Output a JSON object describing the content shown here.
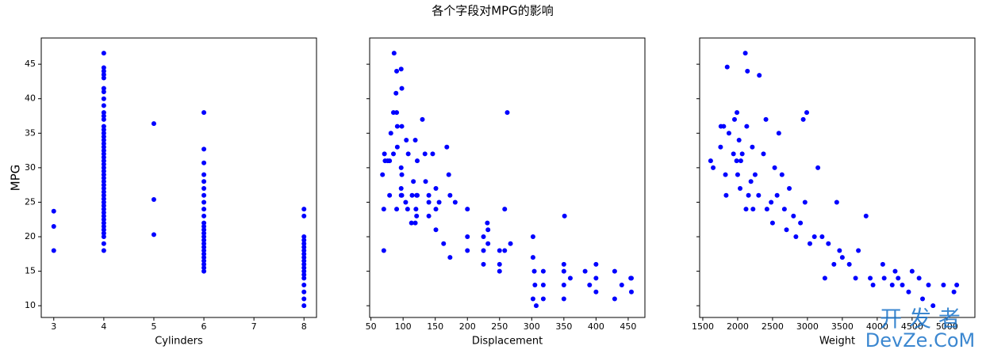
{
  "figure_title": "各个字段对MPG的影响",
  "watermark": [
    "开 发 者",
    "DevZe.CoM"
  ],
  "chart_data": [
    {
      "type": "scatter",
      "xlabel": "Cylinders",
      "ylabel": "MPG",
      "color": "#0000ff",
      "xlim": [
        2.75,
        8.25
      ],
      "xticks": [
        3,
        4,
        5,
        6,
        7,
        8
      ],
      "ylim": [
        8.3,
        48.8
      ],
      "yticks": [
        10,
        15,
        20,
        25,
        30,
        35,
        40,
        45
      ],
      "show_ytick_labels": true,
      "x": [
        3,
        3,
        3,
        4,
        4,
        4,
        4,
        4,
        4,
        4,
        4,
        4,
        4,
        4,
        4,
        4,
        4,
        4,
        4,
        4,
        4,
        4,
        4,
        4,
        4,
        4,
        4,
        4,
        4,
        4,
        4,
        4,
        4,
        4,
        4,
        4,
        4,
        4,
        4,
        4,
        4,
        4,
        4,
        4,
        4,
        4,
        4,
        4,
        4,
        4,
        5,
        5,
        5,
        6,
        6,
        6,
        6,
        6,
        6,
        6,
        6,
        6,
        6,
        6,
        6,
        6,
        6,
        6,
        6,
        6,
        6,
        6,
        6,
        6,
        6,
        6,
        6,
        6,
        8,
        8,
        8,
        8,
        8,
        8,
        8,
        8,
        8,
        8,
        8,
        8,
        8,
        8,
        8,
        8,
        8,
        8,
        8
      ],
      "y": [
        18,
        21.5,
        23.7,
        18,
        19,
        20,
        20.5,
        21,
        21.5,
        22,
        22.5,
        23,
        23.5,
        24,
        24.5,
        25,
        25.5,
        26,
        26.5,
        27,
        27.5,
        28,
        28.5,
        29,
        29.5,
        30,
        30.5,
        31,
        31.5,
        32,
        32.5,
        33,
        33.5,
        34,
        34.5,
        35,
        35.5,
        36,
        37,
        37.5,
        38,
        39,
        40,
        41,
        41.5,
        43,
        43.5,
        44,
        44.5,
        46.6,
        20.3,
        25.4,
        36.4,
        15,
        15.5,
        16,
        16.5,
        17,
        17.5,
        18,
        18.5,
        19,
        19.5,
        20,
        20.5,
        21,
        21.5,
        22,
        23,
        24,
        25,
        26,
        27,
        28,
        29,
        30.7,
        32.7,
        38,
        10,
        11,
        12,
        13,
        14,
        14.5,
        15,
        15.5,
        16,
        16.5,
        17,
        17.5,
        18,
        18.5,
        19,
        19.5,
        20,
        23,
        24
      ]
    },
    {
      "type": "scatter",
      "xlabel": "Displacement",
      "color": "#0000ff",
      "xlim": [
        48,
        476
      ],
      "xticks": [
        50,
        100,
        150,
        200,
        250,
        300,
        350,
        400,
        450
      ],
      "ylim": [
        8.3,
        48.8
      ],
      "yticks": [
        10,
        15,
        20,
        25,
        30,
        35,
        40,
        45
      ],
      "show_ytick_labels": false,
      "x": [
        68,
        70,
        70,
        71,
        72,
        76,
        79,
        79,
        81,
        85,
        85,
        86,
        89,
        90,
        90,
        90,
        91,
        91,
        97,
        97,
        97,
        97,
        98,
        98,
        98,
        98,
        104,
        105,
        107,
        108,
        113,
        114,
        116,
        119,
        119,
        120,
        121,
        121,
        122,
        122,
        130,
        134,
        135,
        140,
        140,
        140,
        146,
        151,
        151,
        151,
        156,
        163,
        168,
        171,
        173,
        173,
        181,
        200,
        200,
        200,
        225,
        225,
        225,
        231,
        232,
        250,
        250,
        250,
        258,
        262,
        267,
        302,
        302,
        304,
        305,
        307,
        318,
        318,
        350,
        350,
        350,
        351,
        360,
        383,
        390,
        400,
        400,
        400,
        429,
        429,
        440,
        454,
        455,
        455,
        258,
        232,
        302,
        318,
        350
      ],
      "y": [
        29,
        24,
        18,
        32,
        31,
        31,
        26,
        31,
        35,
        32,
        38,
        46.6,
        40.8,
        44,
        38,
        24,
        33,
        36,
        44.3,
        26,
        27,
        30,
        29,
        41.5,
        36,
        26,
        25,
        34,
        24,
        32,
        22,
        26,
        28,
        22,
        34,
        24,
        23,
        26,
        31,
        26,
        37,
        32,
        28,
        26,
        23,
        25,
        32,
        27,
        24,
        21,
        25,
        19,
        33,
        29,
        26,
        17,
        25,
        24,
        20,
        18,
        20,
        18,
        16,
        22,
        19,
        18,
        16,
        15,
        24,
        38,
        19,
        20,
        17,
        15,
        13,
        10,
        15,
        13,
        16,
        15,
        13,
        23,
        14,
        15,
        13,
        16,
        14,
        12,
        11,
        15,
        13,
        14,
        12,
        14,
        18,
        21,
        11,
        11,
        11
      ]
    },
    {
      "type": "scatter",
      "xlabel": "Weight",
      "color": "#0000ff",
      "xlim": [
        1455,
        5400
      ],
      "xticks": [
        1500,
        2000,
        2500,
        3000,
        3500,
        4000,
        4500,
        5000
      ],
      "ylim": [
        8.3,
        48.8
      ],
      "yticks": [
        10,
        15,
        20,
        25,
        30,
        35,
        40,
        45
      ],
      "show_ytick_labels": false,
      "x": [
        1613,
        1649,
        1755,
        1760,
        1800,
        1825,
        1835,
        1850,
        1875,
        1940,
        1955,
        1985,
        1990,
        2000,
        2020,
        2035,
        2045,
        2065,
        2110,
        2120,
        2130,
        2140,
        2155,
        2190,
        2210,
        2220,
        2250,
        2300,
        2310,
        2370,
        2405,
        2420,
        2480,
        2500,
        2530,
        2565,
        2590,
        2635,
        2670,
        2700,
        2740,
        2800,
        2835,
        2900,
        2940,
        2965,
        2990,
        3035,
        3100,
        3150,
        3210,
        3250,
        3300,
        3380,
        3420,
        3460,
        3500,
        3600,
        3690,
        3730,
        3840,
        3900,
        3940,
        4080,
        4100,
        4215,
        4257,
        4300,
        4360,
        4450,
        4500,
        4600,
        4650,
        4735,
        4800,
        4950,
        5100,
        5140
      ],
      "y": [
        31,
        30,
        33,
        36,
        36,
        29,
        26,
        44.6,
        35,
        32,
        37,
        31,
        38,
        29,
        34,
        27,
        31,
        32,
        46.6,
        24,
        36,
        44,
        26,
        28,
        33,
        24,
        29,
        26,
        43.4,
        32,
        37,
        24,
        25,
        22,
        30,
        26,
        35,
        29,
        24,
        21,
        27,
        23,
        20,
        22,
        37,
        25,
        38,
        19,
        20,
        30,
        20,
        14,
        19,
        16,
        25,
        18,
        17,
        16,
        14,
        18,
        23,
        14,
        13,
        16,
        14,
        13,
        15,
        14,
        13,
        12,
        15,
        14,
        11,
        13,
        10,
        13,
        12,
        13
      ]
    }
  ]
}
